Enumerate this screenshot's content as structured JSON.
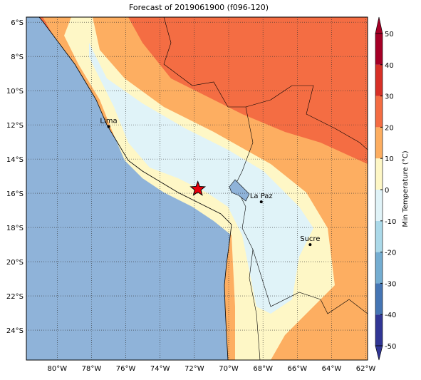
{
  "map": {
    "title": "Forecast of 2019061900 (f096-120)",
    "xlim": [
      -81.8,
      -61.9
    ],
    "ylim": [
      -25.75,
      -5.7
    ],
    "xticks": [
      {
        "value": -80,
        "label": "80°W"
      },
      {
        "value": -78,
        "label": "78°W"
      },
      {
        "value": -76,
        "label": "76°W"
      },
      {
        "value": -74,
        "label": "74°W"
      },
      {
        "value": -72,
        "label": "72°W"
      },
      {
        "value": -70,
        "label": "70°W"
      },
      {
        "value": -68,
        "label": "68°W"
      },
      {
        "value": -66,
        "label": "66°W"
      },
      {
        "value": -64,
        "label": "64°W"
      },
      {
        "value": -62,
        "label": "62°W"
      }
    ],
    "yticks": [
      {
        "value": -6,
        "label": "6°S"
      },
      {
        "value": -8,
        "label": "8°S"
      },
      {
        "value": -10,
        "label": "10°S"
      },
      {
        "value": -12,
        "label": "12°S"
      },
      {
        "value": -14,
        "label": "14°S"
      },
      {
        "value": -16,
        "label": "16°S"
      },
      {
        "value": -18,
        "label": "18°S"
      },
      {
        "value": -20,
        "label": "20°S"
      },
      {
        "value": -22,
        "label": "22°S"
      },
      {
        "value": -24,
        "label": "24°S"
      }
    ],
    "cities": [
      {
        "name": "Lima",
        "lon": -77.0,
        "lat": -12.1
      },
      {
        "name": "La Paz",
        "lon": -68.1,
        "lat": -16.5
      },
      {
        "name": "Sucre",
        "lon": -65.25,
        "lat": -19.0
      }
    ],
    "star": {
      "lon": -71.8,
      "lat": -15.75,
      "color": "#e8000b"
    },
    "colorbar": {
      "label": "Min Temperature (°C)",
      "ticks": [
        -50,
        -40,
        -30,
        -20,
        -10,
        0,
        10,
        20,
        30,
        40,
        50
      ],
      "colors": [
        "#313695",
        "#4575b4",
        "#74add1",
        "#abd9e9",
        "#e0f3f8",
        "#fef7c6",
        "#fdae61",
        "#f46d43",
        "#d73027",
        "#a50026"
      ]
    }
  }
}
